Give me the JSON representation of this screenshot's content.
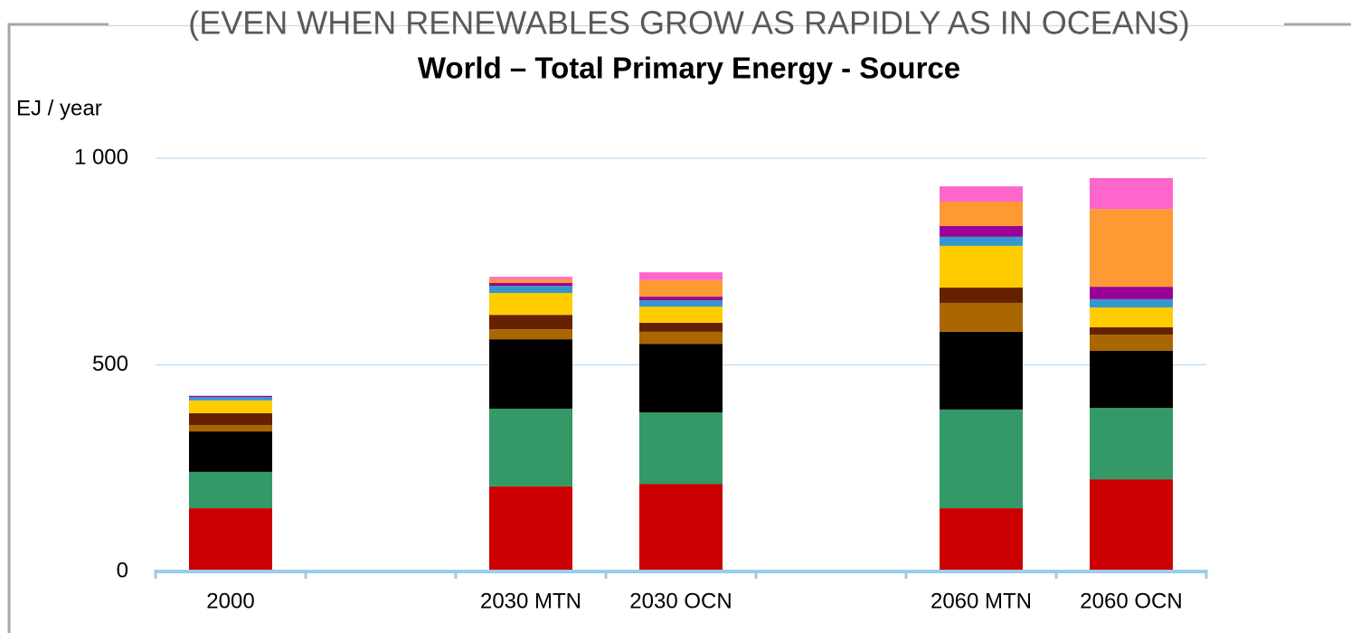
{
  "chart_data": {
    "type": "stacked_bar",
    "supertitle": "(EVEN WHEN RENEWABLES GROW AS RAPIDLY AS IN OCEANS)",
    "title": "World – Total Primary Energy - Source",
    "y_label": "EJ / year",
    "categories": [
      "2000",
      null,
      "2030 MTN",
      "2030 OCN",
      null,
      "2060 MTN",
      "2060 OCN"
    ],
    "series": [
      {
        "color": "#cc0000",
        "values": [
          153,
          null,
          206,
          212,
          null,
          153,
          223
        ]
      },
      {
        "color": "#339966",
        "values": [
          88,
          null,
          188,
          173,
          null,
          239,
          173
        ]
      },
      {
        "color": "#000000",
        "values": [
          98,
          null,
          168,
          166,
          null,
          188,
          138
        ]
      },
      {
        "color": "#aa6600",
        "values": [
          15,
          null,
          24,
          29,
          null,
          70,
          39
        ]
      },
      {
        "color": "#662200",
        "values": [
          29,
          null,
          35,
          22,
          null,
          37,
          18
        ]
      },
      {
        "color": "#ffcc00",
        "values": [
          31,
          null,
          53,
          39,
          null,
          101,
          48
        ]
      },
      {
        "color": "#3399cc",
        "values": [
          8,
          null,
          17,
          15,
          null,
          22,
          20
        ]
      },
      {
        "color": "#990099",
        "values": [
          3,
          null,
          7,
          9,
          null,
          26,
          30
        ]
      },
      {
        "color": "#ff9933",
        "values": [
          0,
          null,
          9,
          40,
          null,
          59,
          188
        ]
      },
      {
        "color": "#ff66cc",
        "values": [
          0,
          null,
          6,
          19,
          null,
          37,
          75
        ]
      }
    ],
    "ylim": [
      0,
      1000
    ],
    "yticks": [
      0,
      500,
      {
        "value": 1000,
        "label": "1 000"
      }
    ],
    "grid": true
  }
}
